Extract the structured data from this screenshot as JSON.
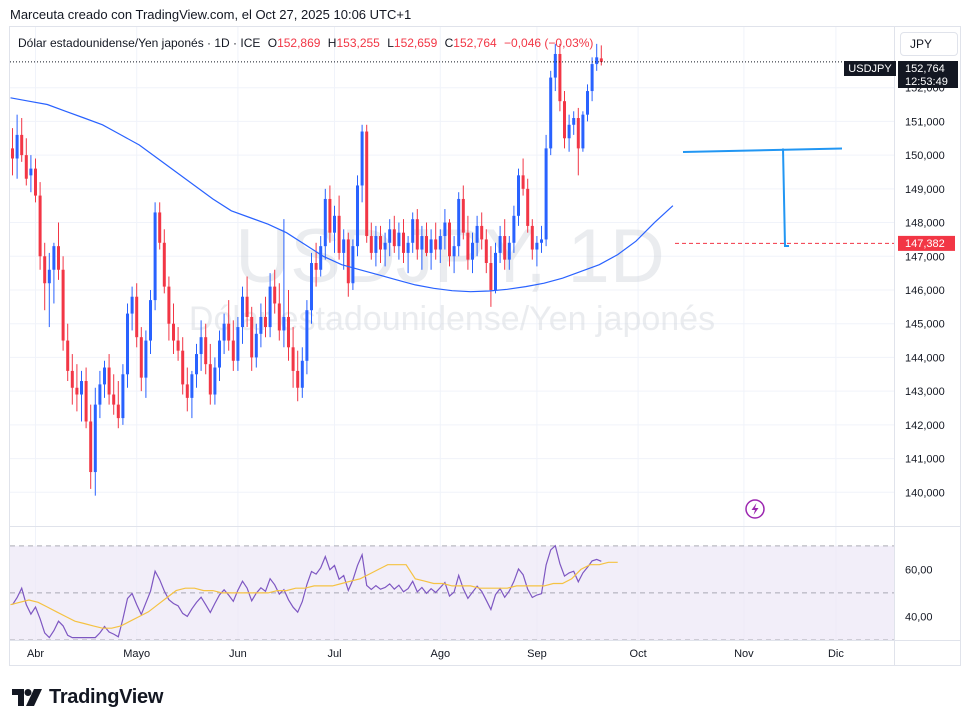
{
  "header": {
    "attribution": "Marceuta creado con TradingView.com, el Oct 27, 2025 10:06 UTC+1"
  },
  "legend": {
    "name": "Dólar estadounidense/Yen japonés · 1D · ICE",
    "open_label": "O",
    "open": "152,869",
    "high_label": "H",
    "high": "153,255",
    "low_label": "L",
    "low": "152,659",
    "close_label": "C",
    "close": "152,764",
    "change": "−0,046 (−0,03%)"
  },
  "currency_button": "JPY",
  "watermark": {
    "symbol": "USDJPY, 1D",
    "description": "Dólar estadounidense/Yen japonés"
  },
  "price_tags": {
    "symbol": "USDJPY",
    "last": "152,764",
    "countdown": "12:53:49",
    "marked_level": "147,382",
    "marked_level_value": 147.382
  },
  "colors": {
    "up": "#2962ff",
    "down": "#f23645",
    "ma": "#2962ff",
    "rsi": "#7e57c2",
    "rsi_ma": "#f5c242",
    "rsi_band": "#ede7f6",
    "drawing": "#2196f3"
  },
  "brand": "TradingView",
  "chart_data": {
    "type": "candlestick",
    "symbol": "USDJPY",
    "interval": "1D",
    "ylim": [
      139,
      153.8
    ],
    "yticks": [
      "152,000",
      "151,000",
      "150,000",
      "149,000",
      "148,000",
      "147,000",
      "146,000",
      "145,000",
      "144,000",
      "143,000",
      "142,000",
      "141,000",
      "140,000"
    ],
    "ytick_values": [
      152,
      151,
      150,
      149,
      148,
      147,
      146,
      145,
      144,
      143,
      142,
      141,
      140
    ],
    "xticks": [
      "Abr",
      "Mayo",
      "Jun",
      "Jul",
      "Ago",
      "Sep",
      "Oct",
      "Nov",
      "Dic"
    ],
    "xtick_months": [
      3,
      4,
      5,
      6,
      7,
      8,
      9,
      10,
      11
    ],
    "start_date": "2025-03-25",
    "candles": [
      [
        150.2,
        150.8,
        149.4,
        149.9
      ],
      [
        149.9,
        151.2,
        149.3,
        150.6
      ],
      [
        150.6,
        151.1,
        149.8,
        150.0
      ],
      [
        150.0,
        150.5,
        149.1,
        149.3
      ],
      [
        149.4,
        150.0,
        148.9,
        149.6
      ],
      [
        149.6,
        149.9,
        148.6,
        148.8
      ],
      [
        148.8,
        149.2,
        146.6,
        147.0
      ],
      [
        147.0,
        147.4,
        145.4,
        146.2
      ],
      [
        146.2,
        147.1,
        144.9,
        146.6
      ],
      [
        146.6,
        147.4,
        145.6,
        147.3
      ],
      [
        147.3,
        148.0,
        146.3,
        146.6
      ],
      [
        146.6,
        147.0,
        144.2,
        144.5
      ],
      [
        144.5,
        145.0,
        143.3,
        143.6
      ],
      [
        143.6,
        144.1,
        142.6,
        143.1
      ],
      [
        143.1,
        143.8,
        142.4,
        142.9
      ],
      [
        142.9,
        143.6,
        142.1,
        143.3
      ],
      [
        143.3,
        143.7,
        141.9,
        142.1
      ],
      [
        142.1,
        142.6,
        140.1,
        140.6
      ],
      [
        140.6,
        143.1,
        139.9,
        142.6
      ],
      [
        142.6,
        143.6,
        142.2,
        143.2
      ],
      [
        143.2,
        143.9,
        142.8,
        143.7
      ],
      [
        143.7,
        144.1,
        142.6,
        142.9
      ],
      [
        142.9,
        143.5,
        142.3,
        142.6
      ],
      [
        142.6,
        143.3,
        141.9,
        142.2
      ],
      [
        142.2,
        143.8,
        142.0,
        143.5
      ],
      [
        143.5,
        145.6,
        143.1,
        145.3
      ],
      [
        145.3,
        146.1,
        144.8,
        145.8
      ],
      [
        145.8,
        146.2,
        144.3,
        144.6
      ],
      [
        144.6,
        144.9,
        143.0,
        143.4
      ],
      [
        143.4,
        144.8,
        142.8,
        144.5
      ],
      [
        144.5,
        146.0,
        144.1,
        145.7
      ],
      [
        145.7,
        148.6,
        145.4,
        148.3
      ],
      [
        148.3,
        148.6,
        147.2,
        147.4
      ],
      [
        147.4,
        147.8,
        145.9,
        146.1
      ],
      [
        146.1,
        146.4,
        144.5,
        145.0
      ],
      [
        145.0,
        145.6,
        144.1,
        144.5
      ],
      [
        144.5,
        144.9,
        143.9,
        144.2
      ],
      [
        144.2,
        144.6,
        142.9,
        143.2
      ],
      [
        143.2,
        143.7,
        142.4,
        142.8
      ],
      [
        142.8,
        143.6,
        142.2,
        143.5
      ],
      [
        143.5,
        144.4,
        143.1,
        144.1
      ],
      [
        144.1,
        145.1,
        143.6,
        144.6
      ],
      [
        144.6,
        145.0,
        143.5,
        143.8
      ],
      [
        143.8,
        144.4,
        142.6,
        142.9
      ],
      [
        142.9,
        144.0,
        142.6,
        143.7
      ],
      [
        143.7,
        144.8,
        143.3,
        144.5
      ],
      [
        144.5,
        145.3,
        144.1,
        145.0
      ],
      [
        145.0,
        145.7,
        144.2,
        144.5
      ],
      [
        144.5,
        145.1,
        143.6,
        143.9
      ],
      [
        143.9,
        145.2,
        143.6,
        144.9
      ],
      [
        144.9,
        146.1,
        144.4,
        145.8
      ],
      [
        145.8,
        146.4,
        144.9,
        145.2
      ],
      [
        145.2,
        145.5,
        143.6,
        144.0
      ],
      [
        144.0,
        145.0,
        143.7,
        144.7
      ],
      [
        144.7,
        145.6,
        144.3,
        145.2
      ],
      [
        145.2,
        145.8,
        144.6,
        144.9
      ],
      [
        144.9,
        146.5,
        144.6,
        146.1
      ],
      [
        146.1,
        146.6,
        145.3,
        145.6
      ],
      [
        145.6,
        146.2,
        144.5,
        144.8
      ],
      [
        144.8,
        148.1,
        144.3,
        145.2
      ],
      [
        145.2,
        146.0,
        143.9,
        144.3
      ],
      [
        144.3,
        144.9,
        143.1,
        143.6
      ],
      [
        143.6,
        144.2,
        142.7,
        143.1
      ],
      [
        143.1,
        144.3,
        142.8,
        143.9
      ],
      [
        143.9,
        145.7,
        143.5,
        145.4
      ],
      [
        145.4,
        147.1,
        145.0,
        146.8
      ],
      [
        146.8,
        147.4,
        146.1,
        146.6
      ],
      [
        146.6,
        147.6,
        146.4,
        147.3
      ],
      [
        147.3,
        149.0,
        146.9,
        148.7
      ],
      [
        148.7,
        149.1,
        147.4,
        147.7
      ],
      [
        147.7,
        148.5,
        147.1,
        148.2
      ],
      [
        148.2,
        148.8,
        146.9,
        147.1
      ],
      [
        147.1,
        147.8,
        146.6,
        147.5
      ],
      [
        147.5,
        147.7,
        145.8,
        146.2
      ],
      [
        146.2,
        147.5,
        146.0,
        147.3
      ],
      [
        147.3,
        149.4,
        147.0,
        149.1
      ],
      [
        149.1,
        150.9,
        148.6,
        150.7
      ],
      [
        150.7,
        150.9,
        147.4,
        147.6
      ],
      [
        147.6,
        148.0,
        146.9,
        147.1
      ],
      [
        147.1,
        147.9,
        146.7,
        147.6
      ],
      [
        147.6,
        147.9,
        146.8,
        147.2
      ],
      [
        147.2,
        147.7,
        146.7,
        147.4
      ],
      [
        147.4,
        148.1,
        147.0,
        147.8
      ],
      [
        147.8,
        148.2,
        147.1,
        147.3
      ],
      [
        147.3,
        148.0,
        146.9,
        147.7
      ],
      [
        147.7,
        148.1,
        146.8,
        147.1
      ],
      [
        147.1,
        147.6,
        146.5,
        147.4
      ],
      [
        147.4,
        148.3,
        147.1,
        148.1
      ],
      [
        148.1,
        148.4,
        146.9,
        147.2
      ],
      [
        147.2,
        147.9,
        146.6,
        147.6
      ],
      [
        147.6,
        148.0,
        147.0,
        147.1
      ],
      [
        147.1,
        147.8,
        146.6,
        147.5
      ],
      [
        147.5,
        148.0,
        146.9,
        147.2
      ],
      [
        147.2,
        147.8,
        146.8,
        147.6
      ],
      [
        147.6,
        148.4,
        147.2,
        148.0
      ],
      [
        148.0,
        148.1,
        146.7,
        147.0
      ],
      [
        147.0,
        147.6,
        146.5,
        147.3
      ],
      [
        147.3,
        148.9,
        147.0,
        148.7
      ],
      [
        148.7,
        149.1,
        147.5,
        147.7
      ],
      [
        147.7,
        148.2,
        146.6,
        146.9
      ],
      [
        146.9,
        147.7,
        146.5,
        147.4
      ],
      [
        147.4,
        148.2,
        147.0,
        147.9
      ],
      [
        147.9,
        148.3,
        147.2,
        147.5
      ],
      [
        147.5,
        147.8,
        146.5,
        146.8
      ],
      [
        146.8,
        147.3,
        145.5,
        146.0
      ],
      [
        146.0,
        147.4,
        145.9,
        147.1
      ],
      [
        147.1,
        147.9,
        146.8,
        147.6
      ],
      [
        147.6,
        148.1,
        146.6,
        146.9
      ],
      [
        146.9,
        147.6,
        146.6,
        147.4
      ],
      [
        147.4,
        148.5,
        147.1,
        148.2
      ],
      [
        148.2,
        149.6,
        147.9,
        149.4
      ],
      [
        149.4,
        149.9,
        148.8,
        149.0
      ],
      [
        149.0,
        149.3,
        147.7,
        147.9
      ],
      [
        147.9,
        148.1,
        146.9,
        147.2
      ],
      [
        147.2,
        147.6,
        146.7,
        147.4
      ],
      [
        147.4,
        147.9,
        147.1,
        147.5
      ],
      [
        147.5,
        150.6,
        147.3,
        150.2
      ],
      [
        150.2,
        152.5,
        150.0,
        152.3
      ],
      [
        152.3,
        153.3,
        151.9,
        153.0
      ],
      [
        153.0,
        153.3,
        151.3,
        151.6
      ],
      [
        151.6,
        151.9,
        150.2,
        150.5
      ],
      [
        150.5,
        151.2,
        150.1,
        150.9
      ],
      [
        150.9,
        151.3,
        150.6,
        151.1
      ],
      [
        151.1,
        151.4,
        149.4,
        150.2
      ],
      [
        150.2,
        151.3,
        150.1,
        151.2
      ],
      [
        151.2,
        152.1,
        151.0,
        151.9
      ],
      [
        151.9,
        152.9,
        151.6,
        152.7
      ],
      [
        152.7,
        153.3,
        152.5,
        152.9
      ],
      [
        152.869,
        153.255,
        152.659,
        152.764
      ]
    ],
    "moving_average": [
      151.7,
      151.6,
      151.5,
      151.3,
      151.1,
      150.9,
      150.6,
      150.3,
      149.9,
      149.5,
      149.1,
      148.7,
      148.35,
      148.15,
      147.95,
      147.7,
      147.35,
      147.0,
      146.75,
      146.6,
      146.45,
      146.3,
      146.15,
      146.05,
      145.98,
      145.95,
      145.97,
      146.02,
      146.1,
      146.2,
      146.35,
      146.55,
      146.75,
      147.05,
      147.45,
      148.0,
      148.5
    ],
    "rsi_ylim": [
      30,
      78
    ],
    "rsi_yticks": [
      "60,00",
      "40,00"
    ],
    "rsi_ytick_values": [
      60,
      40
    ],
    "rsi_bands": [
      70,
      30
    ],
    "rsi_midline": 50,
    "rsi_ma_values": [
      45,
      46,
      47,
      46,
      44,
      42,
      40,
      38,
      37,
      36,
      35,
      35,
      36,
      38,
      40,
      42,
      45,
      48,
      51,
      52,
      52,
      51,
      51,
      50,
      50,
      50,
      50,
      50,
      50,
      51,
      51,
      52,
      52,
      53,
      53,
      53,
      54,
      55,
      56,
      58,
      60,
      62,
      62,
      62,
      56,
      55,
      54,
      54,
      53,
      53,
      53,
      52,
      52,
      52,
      52,
      53,
      53,
      53,
      53,
      54,
      54,
      56,
      60,
      62,
      62,
      63,
      63
    ]
  }
}
